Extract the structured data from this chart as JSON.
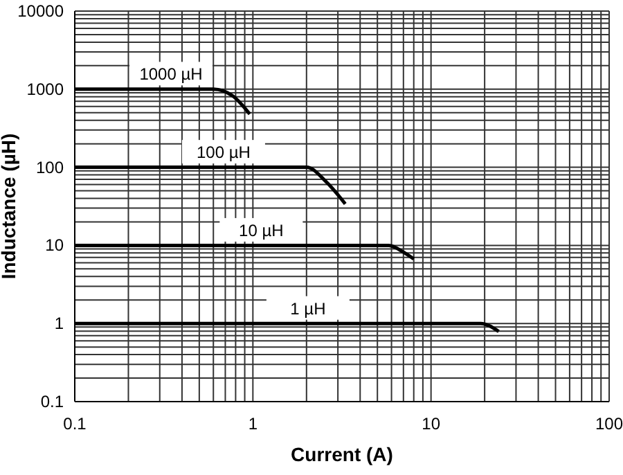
{
  "chart_data": {
    "type": "line",
    "xlabel": "Current (A)",
    "ylabel": "Inductance (µH)",
    "log": "xy",
    "grid": true,
    "marker": "none",
    "line_style": "solid",
    "xlim": [
      0.1,
      100
    ],
    "ylim": [
      0.1,
      10000
    ],
    "xticks": [
      0.1,
      {
        "value": 0.2,
        "label": null
      },
      {
        "value": 0.3,
        "label": null
      },
      {
        "value": 0.4,
        "label": null
      },
      {
        "value": 0.5,
        "label": null
      },
      {
        "value": 0.6,
        "label": null
      },
      {
        "value": 0.7,
        "label": null
      },
      {
        "value": 0.8,
        "label": null
      },
      {
        "value": 0.9,
        "label": null
      },
      1,
      {
        "value": 2,
        "label": null
      },
      {
        "value": 3,
        "label": null
      },
      {
        "value": 4,
        "label": null
      },
      {
        "value": 5,
        "label": null
      },
      {
        "value": 6,
        "label": null
      },
      {
        "value": 7,
        "label": null
      },
      {
        "value": 8,
        "label": null
      },
      {
        "value": 9,
        "label": null
      },
      10,
      {
        "value": 20,
        "label": null
      },
      {
        "value": 30,
        "label": null
      },
      {
        "value": 40,
        "label": null
      },
      {
        "value": 50,
        "label": null
      },
      {
        "value": 60,
        "label": null
      },
      {
        "value": 70,
        "label": null
      },
      {
        "value": 80,
        "label": null
      },
      {
        "value": 90,
        "label": null
      },
      100
    ],
    "yticks": [
      0.1,
      {
        "value": 0.2,
        "label": null
      },
      {
        "value": 0.3,
        "label": null
      },
      {
        "value": 0.4,
        "label": null
      },
      {
        "value": 0.5,
        "label": null
      },
      {
        "value": 0.6,
        "label": null
      },
      {
        "value": 0.7,
        "label": null
      },
      {
        "value": 0.8,
        "label": null
      },
      {
        "value": 0.9,
        "label": null
      },
      1,
      {
        "value": 2,
        "label": null
      },
      {
        "value": 3,
        "label": null
      },
      {
        "value": 4,
        "label": null
      },
      {
        "value": 5,
        "label": null
      },
      {
        "value": 6,
        "label": null
      },
      {
        "value": 7,
        "label": null
      },
      {
        "value": 8,
        "label": null
      },
      {
        "value": 9,
        "label": null
      },
      10,
      {
        "value": 20,
        "label": null
      },
      {
        "value": 30,
        "label": null
      },
      {
        "value": 40,
        "label": null
      },
      {
        "value": 50,
        "label": null
      },
      {
        "value": 60,
        "label": null
      },
      {
        "value": 70,
        "label": null
      },
      {
        "value": 80,
        "label": null
      },
      {
        "value": 90,
        "label": null
      },
      100,
      {
        "value": 200,
        "label": null
      },
      {
        "value": 300,
        "label": null
      },
      {
        "value": 400,
        "label": null
      },
      {
        "value": 500,
        "label": null
      },
      {
        "value": 600,
        "label": null
      },
      {
        "value": 700,
        "label": null
      },
      {
        "value": 800,
        "label": null
      },
      {
        "value": 900,
        "label": null
      },
      1000,
      {
        "value": 2000,
        "label": null
      },
      {
        "value": 3000,
        "label": null
      },
      {
        "value": 4000,
        "label": null
      },
      {
        "value": 5000,
        "label": null
      },
      {
        "value": 6000,
        "label": null
      },
      {
        "value": 7000,
        "label": null
      },
      {
        "value": 8000,
        "label": null
      },
      {
        "value": 9000,
        "label": null
      },
      10000
    ],
    "series": [
      {
        "name": "1000 µH",
        "color": "#000000",
        "x": [
          0.1,
          0.6,
          0.77,
          0.96
        ],
        "values": [
          1000,
          1000,
          820,
          480
        ]
      },
      {
        "name": "100 µH",
        "color": "#000000",
        "x": [
          0.1,
          2.0,
          2.6,
          3.3
        ],
        "values": [
          100,
          100,
          64,
          34
        ]
      },
      {
        "name": "10 µH",
        "color": "#000000",
        "x": [
          0.1,
          5.8,
          7.0,
          8.0
        ],
        "values": [
          10,
          10,
          8.2,
          6.7
        ]
      },
      {
        "name": "1 µH",
        "color": "#000000",
        "x": [
          0.1,
          19,
          24
        ],
        "values": [
          1,
          1,
          0.79
        ]
      }
    ]
  }
}
